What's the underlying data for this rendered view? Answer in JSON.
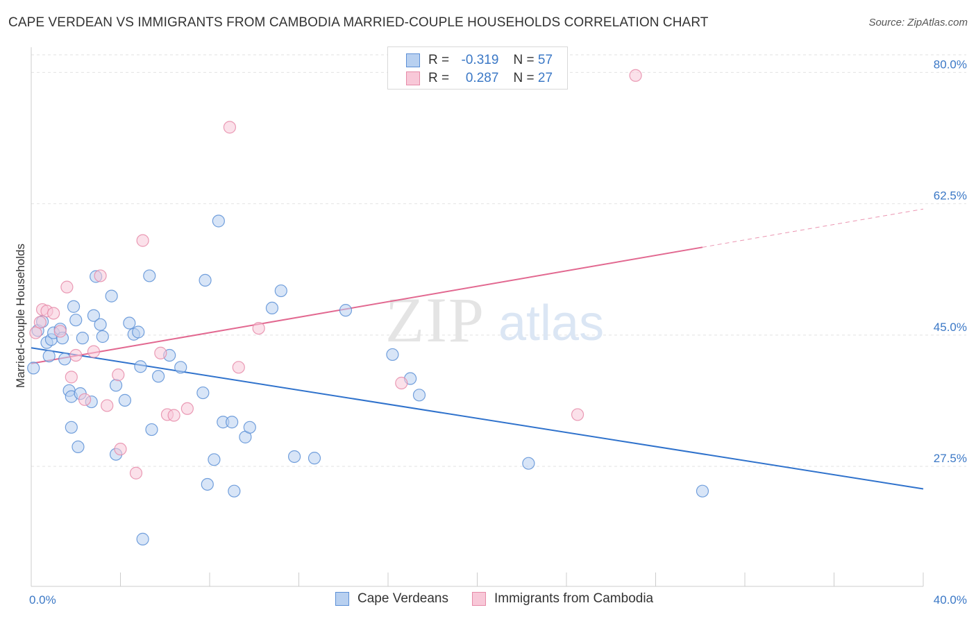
{
  "header": {
    "title": "CAPE VERDEAN VS IMMIGRANTS FROM CAMBODIA MARRIED-COUPLE HOUSEHOLDS CORRELATION CHART",
    "source": "Source: ZipAtlas.com"
  },
  "watermark": {
    "zip": "ZIP",
    "atlas": "atlas"
  },
  "legend": {
    "rows": [
      {
        "r_label": "R =",
        "r_value": "-0.319",
        "n_label": "N =",
        "n_value": "57"
      },
      {
        "r_label": "R =",
        "r_value": "0.287",
        "n_label": "N =",
        "n_value": "27"
      }
    ]
  },
  "colors": {
    "blue_fill": "#b8d0f0",
    "blue_stroke": "#5b8fd6",
    "blue_line": "#2f72cc",
    "pink_fill": "#f8c8d8",
    "pink_stroke": "#e68aa8",
    "pink_line": "#e26890",
    "axis_label": "#3b78c6"
  },
  "chart_data": {
    "type": "scatter",
    "title": "CAPE VERDEAN VS IMMIGRANTS FROM CAMBODIA MARRIED-COUPLE HOUSEHOLDS CORRELATION CHART",
    "xlabel": "",
    "ylabel": "Married-couple Households",
    "xlim": [
      0,
      40
    ],
    "ylim": [
      11.5,
      83
    ],
    "x_tick_labels": {
      "min": "0.0%",
      "max": "40.0%"
    },
    "y_ticks": [
      {
        "value": 27.5,
        "label": "27.5%"
      },
      {
        "value": 45.0,
        "label": "45.0%"
      },
      {
        "value": 62.5,
        "label": "62.5%"
      },
      {
        "value": 80.0,
        "label": "80.0%"
      }
    ],
    "grid": true,
    "legend_position": "bottom",
    "series": [
      {
        "name": "Cape Verdeans",
        "trend": {
          "x": [
            0,
            40
          ],
          "y": [
            43.3,
            24.5
          ],
          "solid_to": 40
        },
        "points": [
          [
            0.1,
            40.6
          ],
          [
            0.3,
            45.6
          ],
          [
            0.5,
            46.8
          ],
          [
            0.7,
            44.0
          ],
          [
            0.8,
            42.2
          ],
          [
            0.9,
            44.4
          ],
          [
            1.0,
            45.3
          ],
          [
            1.3,
            45.8
          ],
          [
            1.4,
            44.6
          ],
          [
            1.5,
            41.8
          ],
          [
            1.7,
            37.6
          ],
          [
            1.8,
            32.7
          ],
          [
            1.9,
            48.8
          ],
          [
            2.0,
            47.0
          ],
          [
            1.8,
            36.8
          ],
          [
            2.1,
            30.1
          ],
          [
            2.2,
            37.2
          ],
          [
            2.3,
            44.6
          ],
          [
            2.7,
            36.1
          ],
          [
            2.8,
            47.6
          ],
          [
            2.9,
            52.8
          ],
          [
            3.1,
            46.4
          ],
          [
            3.2,
            44.8
          ],
          [
            3.6,
            50.2
          ],
          [
            3.8,
            38.3
          ],
          [
            3.8,
            29.1
          ],
          [
            4.2,
            36.3
          ],
          [
            4.4,
            46.6
          ],
          [
            4.6,
            45.1
          ],
          [
            4.8,
            45.4
          ],
          [
            4.9,
            40.8
          ],
          [
            5.0,
            17.8
          ],
          [
            5.4,
            32.4
          ],
          [
            5.3,
            52.9
          ],
          [
            5.7,
            39.5
          ],
          [
            6.2,
            42.3
          ],
          [
            6.7,
            40.7
          ],
          [
            7.7,
            37.3
          ],
          [
            7.8,
            52.3
          ],
          [
            7.9,
            25.1
          ],
          [
            8.2,
            28.4
          ],
          [
            8.4,
            60.2
          ],
          [
            8.6,
            33.4
          ],
          [
            9.0,
            33.4
          ],
          [
            9.1,
            24.2
          ],
          [
            9.6,
            31.4
          ],
          [
            9.8,
            32.7
          ],
          [
            10.8,
            48.6
          ],
          [
            11.2,
            50.9
          ],
          [
            11.8,
            28.8
          ],
          [
            12.7,
            28.6
          ],
          [
            14.1,
            48.3
          ],
          [
            16.2,
            42.4
          ],
          [
            17.0,
            39.2
          ],
          [
            17.4,
            37.0
          ],
          [
            22.3,
            27.9
          ],
          [
            30.1,
            24.2
          ]
        ]
      },
      {
        "name": "Immigrants from Cambodia",
        "trend": {
          "x": [
            0,
            40
          ],
          "y": [
            41.2,
            61.8
          ],
          "solid_to": 30.1
        },
        "points": [
          [
            0.2,
            45.3
          ],
          [
            0.4,
            46.7
          ],
          [
            0.5,
            48.4
          ],
          [
            0.7,
            48.2
          ],
          [
            1.0,
            47.9
          ],
          [
            1.3,
            45.5
          ],
          [
            1.6,
            51.4
          ],
          [
            1.8,
            39.4
          ],
          [
            2.0,
            42.3
          ],
          [
            2.4,
            36.4
          ],
          [
            2.8,
            42.8
          ],
          [
            3.1,
            52.9
          ],
          [
            3.4,
            35.6
          ],
          [
            3.9,
            39.7
          ],
          [
            4.0,
            29.8
          ],
          [
            4.7,
            26.6
          ],
          [
            5.0,
            57.6
          ],
          [
            5.8,
            42.6
          ],
          [
            6.1,
            34.4
          ],
          [
            6.4,
            34.3
          ],
          [
            7.0,
            35.2
          ],
          [
            8.9,
            72.7
          ],
          [
            9.3,
            40.7
          ],
          [
            10.2,
            45.9
          ],
          [
            16.6,
            38.6
          ],
          [
            24.5,
            34.4
          ],
          [
            27.1,
            79.6
          ]
        ]
      }
    ]
  }
}
